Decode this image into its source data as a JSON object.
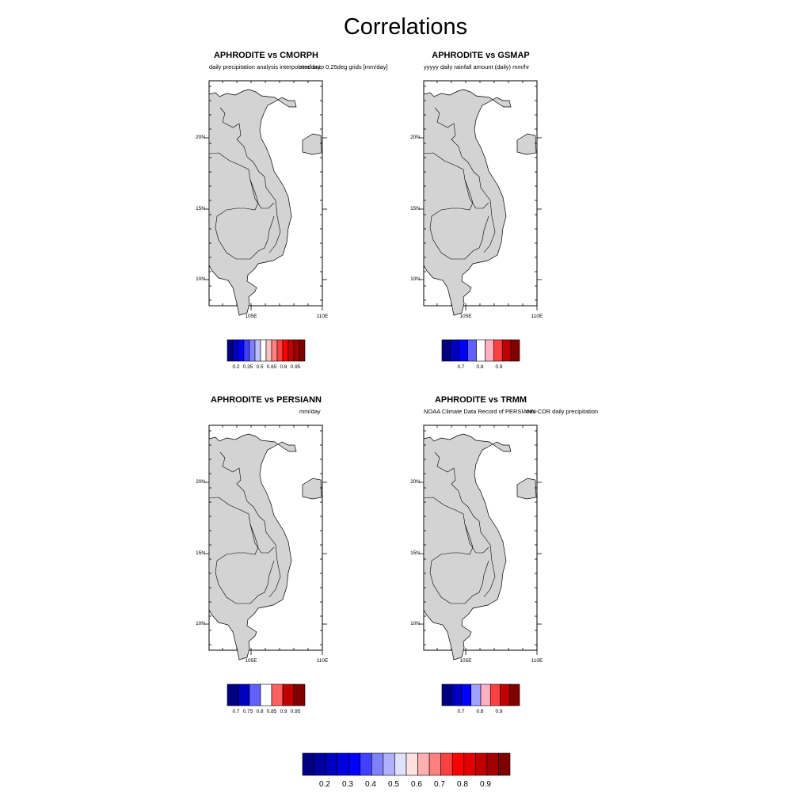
{
  "page": {
    "title": "Correlations"
  },
  "panels": [
    {
      "id": "cmorph",
      "title": "APHRODITE vs CMORPH",
      "subtitle_left": "daily precipitation analysis interpolated onto 0.25deg grids [mm/day]",
      "subtitle_right": "mm/day",
      "colorbar": {
        "colors": [
          "#000080",
          "#0000c0",
          "#0000ff",
          "#4040ff",
          "#8080ff",
          "#c0c0ff",
          "#ffffff",
          "#ffc0c0",
          "#ff8080",
          "#ff4040",
          "#ff0000",
          "#c00000",
          "#a00000",
          "#800000"
        ],
        "labels": [
          "0.2",
          "0.35",
          "0.5",
          "0.65",
          "0.8",
          "0.95"
        ]
      }
    },
    {
      "id": "gsmap",
      "title": "APHRODITE vs GSMAP",
      "subtitle_left": "yyyyy daily rainfall amount (daily) mm/hr",
      "subtitle_right": "",
      "colorbar": {
        "colors": [
          "#000080",
          "#0000c0",
          "#0000ff",
          "#6060ff",
          "#ffffff",
          "#ffb0c0",
          "#ff4040",
          "#c00000",
          "#800000"
        ],
        "labels": [
          "0.7",
          "0.8",
          "0.9"
        ]
      }
    },
    {
      "id": "persiann",
      "title": "APHRODITE vs PERSIANN",
      "subtitle_left": "",
      "subtitle_right": "mm/day",
      "colorbar": {
        "colors": [
          "#000080",
          "#0000c0",
          "#6060ff",
          "#ffffff",
          "#ff6060",
          "#c00000",
          "#800000"
        ],
        "labels": [
          "0.7",
          "0.75",
          "0.8",
          "0.85",
          "0.9",
          "0.95"
        ]
      }
    },
    {
      "id": "trmm",
      "title": "APHRODITE vs TRMM",
      "subtitle_left": "NOAA Climate Data Record of PERSIANN-CDR daily precipitation",
      "subtitle_right": "mm",
      "colorbar": {
        "colors": [
          "#000080",
          "#0000c0",
          "#0000ff",
          "#a0a0ff",
          "#ffb0c0",
          "#ff4040",
          "#c00000",
          "#800000"
        ],
        "labels": [
          "0.7",
          "0.8",
          "0.9"
        ]
      }
    }
  ],
  "map": {
    "lon_ticks": [
      "105E",
      "110E"
    ],
    "lat_ticks": [
      "20N",
      "15N",
      "10N"
    ],
    "land_color": "#d3d3d3",
    "sea_color": "#ffffff"
  },
  "shared_colorbar": {
    "colors": [
      "#000080",
      "#0000a0",
      "#0000c0",
      "#0000e0",
      "#0000ff",
      "#4040ff",
      "#8080ff",
      "#b0b0ff",
      "#e0e0ff",
      "#ffe0e0",
      "#ffb0b0",
      "#ff8080",
      "#ff4040",
      "#ff0000",
      "#e00000",
      "#c00000",
      "#a00000",
      "#800000"
    ],
    "labels": [
      "0.2",
      "0.3",
      "0.4",
      "0.5",
      "0.6",
      "0.7",
      "0.8",
      "0.9"
    ]
  }
}
